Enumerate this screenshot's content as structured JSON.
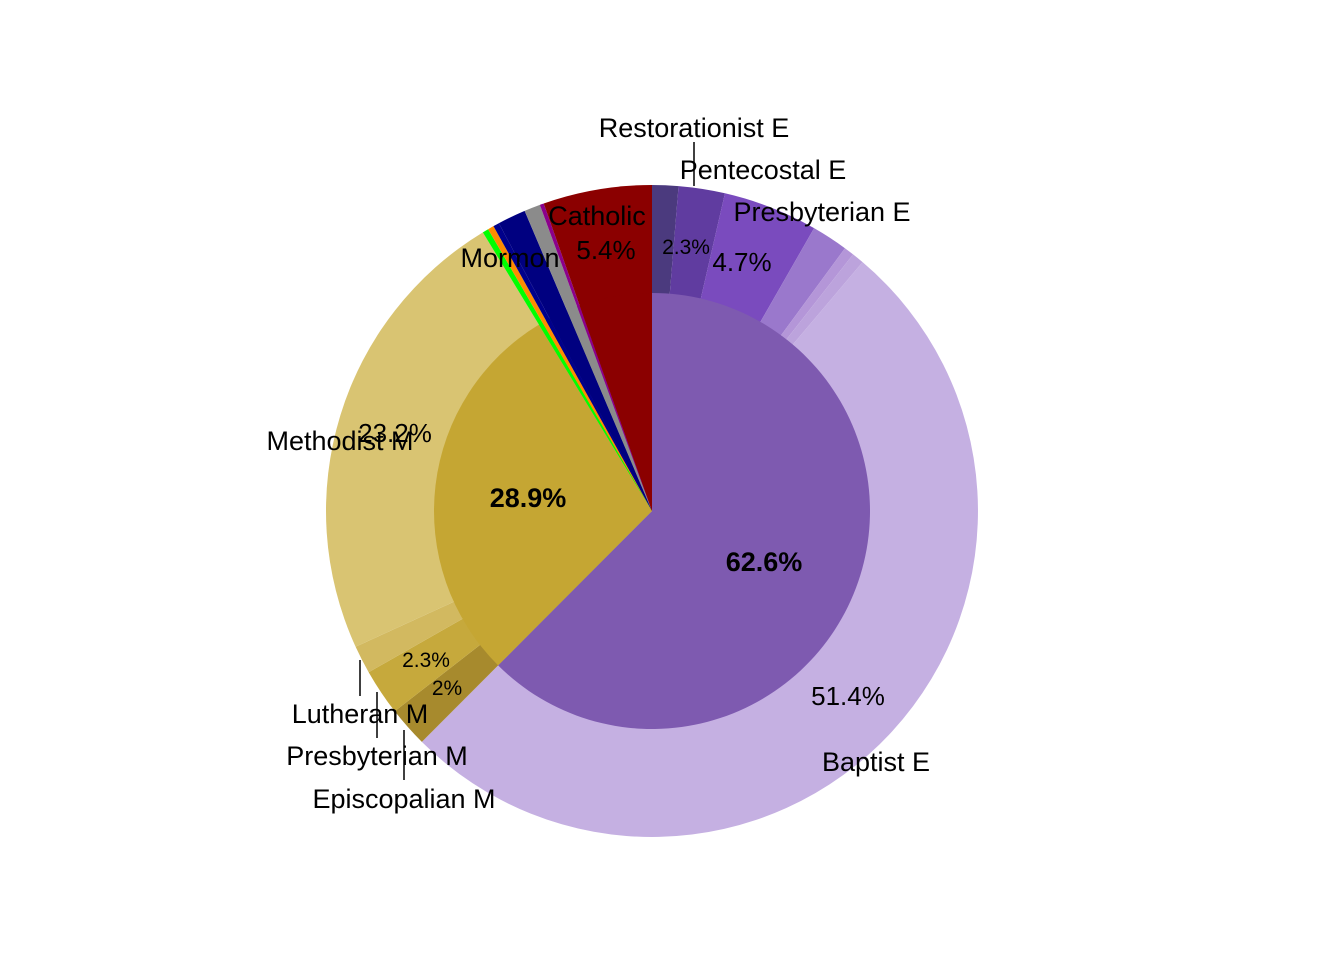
{
  "chart_data": {
    "type": "pie",
    "inner_ring": [
      {
        "name": "",
        "value": 62.6,
        "label": "62.6%",
        "color": "#7e5ab0"
      },
      {
        "name": "",
        "value": 28.9,
        "label": "28.9%",
        "color": "#c5a633"
      },
      {
        "name": "",
        "value": 0.3,
        "color": "#00ff00"
      },
      {
        "name": "",
        "value": 0.3,
        "color": "#ff8c00"
      },
      {
        "name": "",
        "value": 0.3,
        "color": "#00008b"
      },
      {
        "name": "",
        "value": 1.4,
        "color": "#000080"
      },
      {
        "name": "",
        "value": 0.8,
        "color": "#8b8b8b"
      },
      {
        "name": "",
        "value": 0.2,
        "color": "#8b008b"
      },
      {
        "name": "",
        "value": 5.4,
        "color": "#8b0000"
      }
    ],
    "outer_ring": [
      {
        "name": "",
        "value": 1.3,
        "color": "#4b3a7e"
      },
      {
        "name": "Restorationist E",
        "value": 2.3,
        "label": "2.3%",
        "color": "#603ca0"
      },
      {
        "name": "Pentecostal E",
        "value": 4.7,
        "label": "4.7%",
        "color": "#7a4bbe"
      },
      {
        "name": "",
        "value": 1.8,
        "color": "#9a78cc"
      },
      {
        "name": "",
        "value": 0.5,
        "color": "#b496d8"
      },
      {
        "name": "",
        "value": 0.6,
        "color": "#bca3dc"
      },
      {
        "name": "Baptist E",
        "value": 51.4,
        "label": "51.4%",
        "color": "#c5b0e2"
      },
      {
        "name": "Episcopalian M",
        "value": 2.0,
        "label": "2%",
        "color": "#a78a2d"
      },
      {
        "name": "Presbyterian M",
        "value": 2.3,
        "label": "2.3%",
        "color": "#c6a93c"
      },
      {
        "name": "Lutheran M",
        "value": 1.4,
        "color": "#d2b960"
      },
      {
        "name": "Methodist M",
        "value": 23.2,
        "label": "23.2%",
        "color": "#d9c472"
      },
      {
        "name": "",
        "value": 0.3,
        "color": "#00ff00"
      },
      {
        "name": "",
        "value": 0.3,
        "color": "#ff8c00"
      },
      {
        "name": "",
        "value": 0.3,
        "color": "#00008b"
      },
      {
        "name": "Mormon",
        "value": 1.4,
        "color": "#000080"
      },
      {
        "name": "",
        "value": 0.8,
        "color": "#8b8b8b"
      },
      {
        "name": "",
        "value": 0.2,
        "color": "#8b008b"
      },
      {
        "name": "Catholic",
        "value": 5.4,
        "label": "5.4%",
        "color": "#8b0000"
      }
    ],
    "outer_labels_extra": {
      "presbyterian_e": "Presbyterian E"
    },
    "start_angle_deg": 0,
    "direction": "clockwise",
    "legend": "none",
    "title": ""
  }
}
